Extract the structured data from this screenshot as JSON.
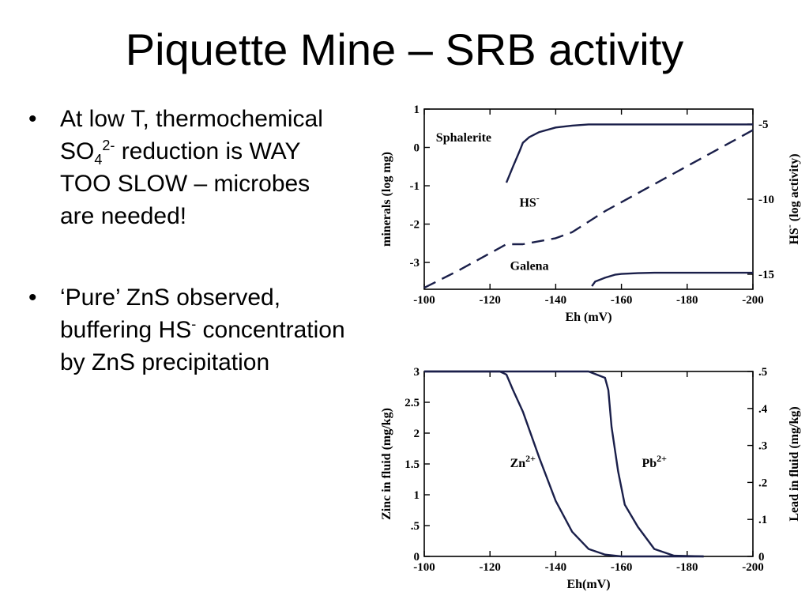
{
  "slide": {
    "title": "Piquette Mine – SRB activity"
  },
  "bullets": [
    {
      "marker": "•",
      "p1": "At low T, thermochemical SO",
      "sub": "4",
      "sup": "2-",
      "p2": " reduction is WAY TOO SLOW – microbes are needed!"
    },
    {
      "marker": "•",
      "p1": "‘Pure’ ZnS observed, buffering HS",
      "sup": "-",
      "p2": " concentration by ZnS precipitation"
    }
  ],
  "chart_data": [
    {
      "type": "line",
      "xlabel": "Eh (mV)",
      "ylabel": "minerals (log mg)",
      "y2label_main": "HS",
      "y2label_sup": "-",
      "y2label_rest": " (log activity)",
      "xlim": [
        -100,
        -200
      ],
      "ylim": [
        -3.7,
        1
      ],
      "y2lim": [
        -16,
        -4
      ],
      "x_ticks": [
        -100,
        -120,
        -140,
        -160,
        -180,
        -200
      ],
      "x_tick_labels": [
        "-100",
        "-120",
        "-140",
        "-160",
        "-180",
        "-200"
      ],
      "y_ticks": [
        1,
        0,
        -1,
        -2,
        -3
      ],
      "y_tick_labels": [
        "1",
        "0",
        "-1",
        "-2",
        "-3"
      ],
      "y2_ticks": [
        -5,
        -10,
        -15
      ],
      "y2_tick_labels": [
        "-5",
        "-10",
        "-15"
      ],
      "grid": false,
      "series": [
        {
          "name": "Sphalerite",
          "axis": "left",
          "dash": false,
          "x": [
            -125,
            -127,
            -129,
            -130,
            -132,
            -135,
            -140,
            -145,
            -150,
            -160,
            -170,
            -180,
            -190,
            -200
          ],
          "y": [
            -0.92,
            -0.5,
            -0.1,
            0.12,
            0.27,
            0.4,
            0.52,
            0.57,
            0.6,
            0.6,
            0.6,
            0.6,
            0.6,
            0.6
          ]
        },
        {
          "name": "HS-",
          "axis": "right",
          "dash": true,
          "x": [
            -100,
            -110,
            -120,
            -125,
            -130,
            -135,
            -140,
            -145,
            -150,
            -155,
            -160,
            -170,
            -180,
            -190,
            -200
          ],
          "y": [
            -15.9,
            -14.8,
            -13.6,
            -13.0,
            -13.0,
            -12.8,
            -12.6,
            -12.2,
            -11.5,
            -10.8,
            -10.2,
            -9.0,
            -7.8,
            -6.6,
            -5.4
          ]
        },
        {
          "name": "Galena",
          "axis": "left",
          "dash": false,
          "x": [
            -151,
            -152,
            -155,
            -158,
            -160,
            -165,
            -170,
            -180,
            -190,
            -200
          ],
          "y": [
            -3.62,
            -3.5,
            -3.4,
            -3.32,
            -3.3,
            -3.28,
            -3.27,
            -3.27,
            -3.27,
            -3.27
          ]
        }
      ],
      "annotations": [
        {
          "text": "Sphalerite",
          "x": -112,
          "y": 0.15,
          "axis": "left"
        },
        {
          "main": "HS",
          "sup": "-",
          "x": -132,
          "y": -1.55,
          "axis": "left"
        },
        {
          "text": "Galena",
          "x": -132,
          "y": -3.2,
          "axis": "left"
        }
      ]
    },
    {
      "type": "line",
      "xlabel": "Eh(mV)",
      "ylabel": "Zinc in fluid (mg/kg)",
      "y2label": "Lead in fluid (mg/kg)",
      "xlim": [
        -100,
        -200
      ],
      "ylim": [
        0,
        3
      ],
      "y2lim": [
        0,
        0.5
      ],
      "x_ticks": [
        -100,
        -120,
        -140,
        -160,
        -180,
        -200
      ],
      "x_tick_labels": [
        "-100",
        "-120",
        "-140",
        "-160",
        "-180",
        "-200"
      ],
      "y_ticks": [
        3,
        2.5,
        2,
        1.5,
        1,
        0.5,
        0
      ],
      "y_tick_labels": [
        "3",
        "2.5",
        "2",
        "1.5",
        "1",
        ".5",
        "0"
      ],
      "y2_ticks": [
        0.5,
        0.4,
        0.3,
        0.2,
        0.1,
        0
      ],
      "y2_tick_labels": [
        ".5",
        ".4",
        ".3",
        ".2",
        ".1",
        "0"
      ],
      "grid": false,
      "series": [
        {
          "name": "Zn2+",
          "axis": "left",
          "x": [
            -100,
            -123,
            -125,
            -127,
            -130,
            -135,
            -140,
            -145,
            -150,
            -155,
            -160,
            -170,
            -185
          ],
          "y": [
            3,
            3,
            2.95,
            2.7,
            2.35,
            1.6,
            0.9,
            0.4,
            0.12,
            0.03,
            0.0,
            0.0,
            0.0
          ]
        },
        {
          "name": "Pb2+",
          "axis": "right",
          "x": [
            -100,
            -150,
            -155,
            -156,
            -157,
            -159,
            -161,
            -165,
            -170,
            -176,
            -185
          ],
          "y": [
            0.5,
            0.5,
            0.483,
            0.45,
            0.35,
            0.23,
            0.14,
            0.08,
            0.02,
            0.002,
            0.0
          ]
        }
      ],
      "annotations": [
        {
          "main": "Zn",
          "sup": "2+",
          "x": -130,
          "y": 1.45,
          "axis": "left"
        },
        {
          "main": "Pb",
          "sup": "2+",
          "x": -170,
          "y": 1.45,
          "axis": "left"
        }
      ]
    }
  ]
}
